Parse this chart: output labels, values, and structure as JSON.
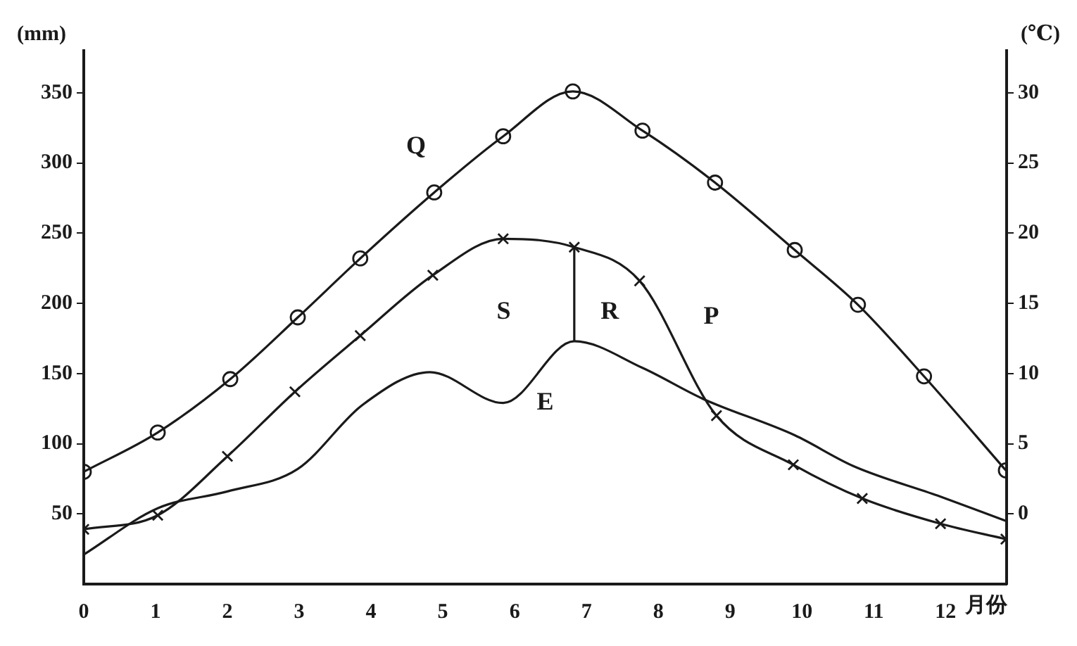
{
  "chart_data": {
    "type": "line",
    "xlabel": "月份",
    "ylabel": "(mm)",
    "y2label": "(℃)",
    "xlim": [
      0,
      12.85
    ],
    "xticks": [
      0,
      1,
      2,
      3,
      4,
      5,
      6,
      7,
      8,
      9,
      10,
      11,
      12
    ],
    "ylim": [
      0,
      380
    ],
    "yticks": [
      50,
      100,
      150,
      200,
      250,
      300,
      350
    ],
    "y2lim": [
      -5,
      33
    ],
    "y2ticks": [
      0,
      5,
      10,
      15,
      20,
      25,
      30
    ],
    "grid": false,
    "legend": false,
    "line_style": "solid",
    "series": [
      {
        "color": "#1a1a1a",
        "axis": "y2",
        "marker": "circle",
        "x": [
          0,
          1.03,
          2.04,
          2.98,
          3.85,
          4.88,
          5.84,
          6.81,
          7.78,
          8.79,
          9.9,
          10.78,
          11.7,
          12.84
        ],
        "values": [
          3.0,
          5.8,
          9.6,
          14.0,
          18.2,
          22.9,
          26.9,
          30.1,
          27.3,
          23.6,
          18.8,
          14.9,
          9.8,
          3.1
        ]
      },
      {
        "color": "#1a1a1a",
        "marker": "cross",
        "x": [
          0,
          1.03,
          2.0,
          2.94,
          3.85,
          4.86,
          5.84,
          6.83,
          7.74,
          8.81,
          9.88,
          10.84,
          11.93,
          12.84
        ],
        "values": [
          39,
          49,
          91,
          137,
          177,
          220,
          246,
          240,
          216,
          120,
          85,
          61,
          43,
          32
        ]
      },
      {
        "color": "#1a1a1a",
        "marker": "none",
        "x": [
          0,
          1.03,
          2.0,
          2.98,
          3.89,
          4.82,
          5.84,
          6.83,
          7.78,
          8.62,
          9.9,
          10.72,
          11.89,
          12.84
        ],
        "values": [
          21,
          54,
          66,
          82,
          128,
          151,
          129,
          173,
          154,
          132,
          106,
          84,
          63,
          45
        ]
      },
      {
        "color": "#1a1a1a",
        "marker": "none",
        "x": [
          6.83,
          6.83
        ],
        "values": [
          240,
          173
        ]
      }
    ],
    "annotations": [
      "Q",
      "S",
      "R",
      "P",
      "E"
    ]
  }
}
